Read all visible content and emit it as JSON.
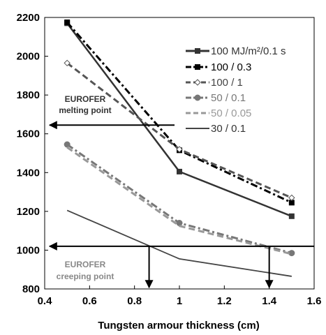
{
  "chart_data": {
    "type": "line",
    "xlabel": "Tungsten armour thickness (cm)",
    "ylabel": "",
    "xlim": [
      0.4,
      1.6
    ],
    "ylim": [
      800,
      2200
    ],
    "xticks": [
      "0.4",
      "0.6",
      "0.8",
      "1",
      "1.2",
      "1.4",
      "1.6"
    ],
    "yticks": [
      "800",
      "1000",
      "1200",
      "1400",
      "1600",
      "1800",
      "2000",
      "2200"
    ],
    "grid": false,
    "legend_position": "top-right",
    "series": [
      {
        "name": "100 MJ/m²/0.1 s",
        "color": "#333333",
        "style": "solid",
        "marker": "square",
        "points": [
          [
            0.5,
            2170
          ],
          [
            1.0,
            1405
          ],
          [
            1.5,
            1175
          ]
        ]
      },
      {
        "name": "100 / 0.3",
        "color": "#000000",
        "style": "dashdot",
        "marker": "square",
        "points": [
          [
            0.5,
            2175
          ],
          [
            1.0,
            1515
          ],
          [
            1.5,
            1245
          ]
        ]
      },
      {
        "name": "100 / 1",
        "color": "#555555",
        "style": "dashed",
        "marker": "diamond",
        "points": [
          [
            0.5,
            1965
          ],
          [
            1.0,
            1520
          ],
          [
            1.5,
            1270
          ]
        ]
      },
      {
        "name": "50 / 0.1",
        "color": "#777777",
        "style": "dashdot",
        "marker": "circle",
        "points": [
          [
            0.5,
            1545
          ],
          [
            1.0,
            1140
          ],
          [
            1.5,
            985
          ]
        ]
      },
      {
        "name": "50 / 0.05",
        "color": "#999999",
        "style": "dashed",
        "marker": "none",
        "points": [
          [
            0.5,
            1530
          ],
          [
            1.0,
            1125
          ],
          [
            1.5,
            980
          ]
        ]
      },
      {
        "name": "30 / 0.1",
        "color": "#444444",
        "style": "solid",
        "marker": "none",
        "points": [
          [
            0.5,
            1205
          ],
          [
            1.0,
            955
          ],
          [
            1.5,
            865
          ]
        ]
      }
    ],
    "reference_lines": [
      {
        "y": 1645,
        "label_1": "EUROFER",
        "label_2": "melting point"
      },
      {
        "y": 1020,
        "label_1": "EUROFER",
        "label_2": "creeping point"
      }
    ],
    "drop_arrows": [
      0.865,
      1.4
    ]
  }
}
